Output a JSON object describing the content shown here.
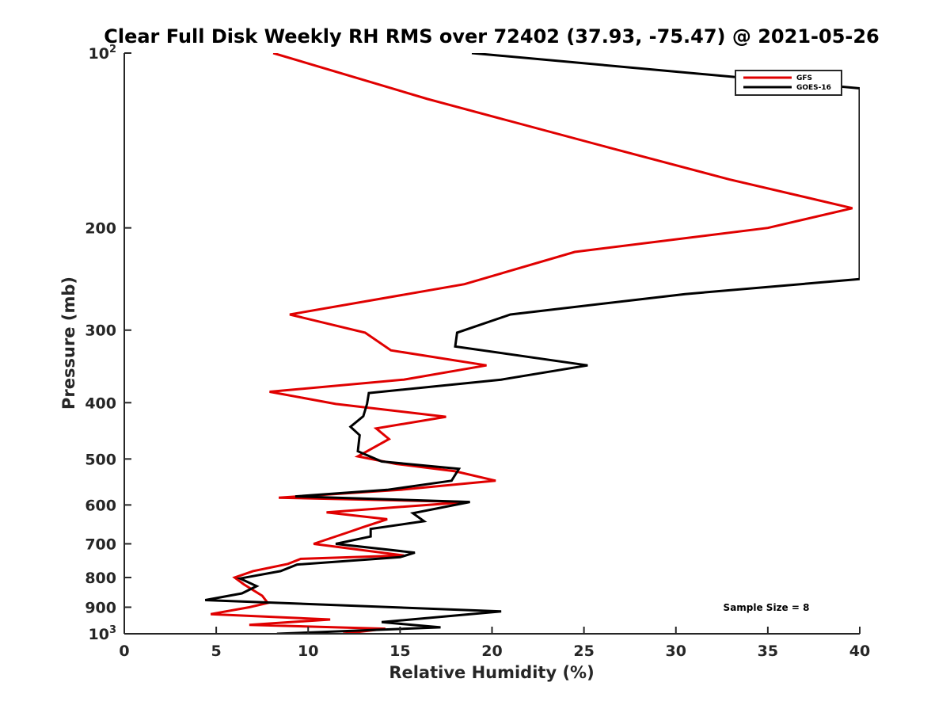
{
  "chart_data": {
    "type": "line",
    "title": "Clear Full Disk Weekly RH RMS over 72402 (37.93, -75.47) @ 2021-05-26",
    "xlabel": "Relative Humidity (%)",
    "ylabel": "Pressure (mb)",
    "xlim": [
      0,
      40
    ],
    "ylim": [
      100,
      1000
    ],
    "yscale": "log",
    "yreversed": true,
    "x_ticks": [
      0,
      5,
      10,
      15,
      20,
      25,
      30,
      35,
      40
    ],
    "x_tick_labels": [
      "0",
      "5",
      "10",
      "15",
      "20",
      "25",
      "30",
      "35",
      "40"
    ],
    "y_ticks": [
      100,
      200,
      300,
      400,
      500,
      600,
      700,
      800,
      900,
      1000
    ],
    "y_tick_labels": [
      "10^2",
      "200",
      "300",
      "400",
      "500",
      "600",
      "700",
      "800",
      "900",
      "10^3"
    ],
    "y_tick_base": "10",
    "y_tick_exp_top": "2",
    "y_tick_exp_bottom": "3",
    "legend_position": "top-right",
    "annotation": "Sample Size = 8",
    "series": [
      {
        "name": "GFS",
        "color": "#e00000",
        "points": [
          [
            8.1,
            100
          ],
          [
            16.5,
            120
          ],
          [
            26.2,
            145
          ],
          [
            32.9,
            165
          ],
          [
            39.6,
            185
          ],
          [
            35.0,
            200
          ],
          [
            24.5,
            220
          ],
          [
            18.5,
            250
          ],
          [
            9.0,
            282
          ],
          [
            13.1,
            303
          ],
          [
            14.5,
            325
          ],
          [
            19.7,
            345
          ],
          [
            15.2,
            365
          ],
          [
            7.9,
            383
          ],
          [
            11.5,
            402
          ],
          [
            17.5,
            423
          ],
          [
            13.7,
            443
          ],
          [
            14.4,
            462
          ],
          [
            12.7,
            495
          ],
          [
            14.8,
            510
          ],
          [
            18.0,
            525
          ],
          [
            20.2,
            545
          ],
          [
            15.0,
            565
          ],
          [
            8.4,
            583
          ],
          [
            18.7,
            593
          ],
          [
            11.0,
            618
          ],
          [
            14.3,
            635
          ],
          [
            13.0,
            655
          ],
          [
            12.1,
            670
          ],
          [
            10.3,
            700
          ],
          [
            15.2,
            733
          ],
          [
            9.6,
            743
          ],
          [
            8.9,
            758
          ],
          [
            7.0,
            780
          ],
          [
            6.0,
            800
          ],
          [
            6.5,
            822
          ],
          [
            7.5,
            860
          ],
          [
            7.8,
            885
          ],
          [
            6.8,
            900
          ],
          [
            4.7,
            925
          ],
          [
            11.2,
            945
          ],
          [
            6.8,
            965
          ],
          [
            14.2,
            980
          ],
          [
            11.9,
            1000
          ]
        ]
      },
      {
        "name": "GOES-16",
        "color": "#000000",
        "points": [
          [
            18.9,
            100
          ],
          [
            40.0,
            115
          ],
          [
            40.0,
            245
          ],
          [
            30.5,
            260
          ],
          [
            21.0,
            282
          ],
          [
            18.1,
            303
          ],
          [
            18.0,
            320
          ],
          [
            25.2,
            345
          ],
          [
            20.5,
            365
          ],
          [
            13.3,
            385
          ],
          [
            13.2,
            402
          ],
          [
            13.0,
            422
          ],
          [
            12.3,
            440
          ],
          [
            12.8,
            455
          ],
          [
            12.7,
            485
          ],
          [
            14.0,
            505
          ],
          [
            18.2,
            520
          ],
          [
            17.8,
            545
          ],
          [
            14.3,
            565
          ],
          [
            9.3,
            580
          ],
          [
            18.8,
            593
          ],
          [
            15.7,
            620
          ],
          [
            16.3,
            640
          ],
          [
            13.4,
            660
          ],
          [
            13.4,
            680
          ],
          [
            11.5,
            700
          ],
          [
            15.8,
            725
          ],
          [
            15.0,
            738
          ],
          [
            9.4,
            760
          ],
          [
            8.5,
            780
          ],
          [
            6.3,
            803
          ],
          [
            7.2,
            828
          ],
          [
            6.4,
            852
          ],
          [
            4.4,
            875
          ],
          [
            20.5,
            915
          ],
          [
            14.0,
            955
          ],
          [
            17.2,
            975
          ],
          [
            8.3,
            1000
          ]
        ]
      }
    ]
  }
}
